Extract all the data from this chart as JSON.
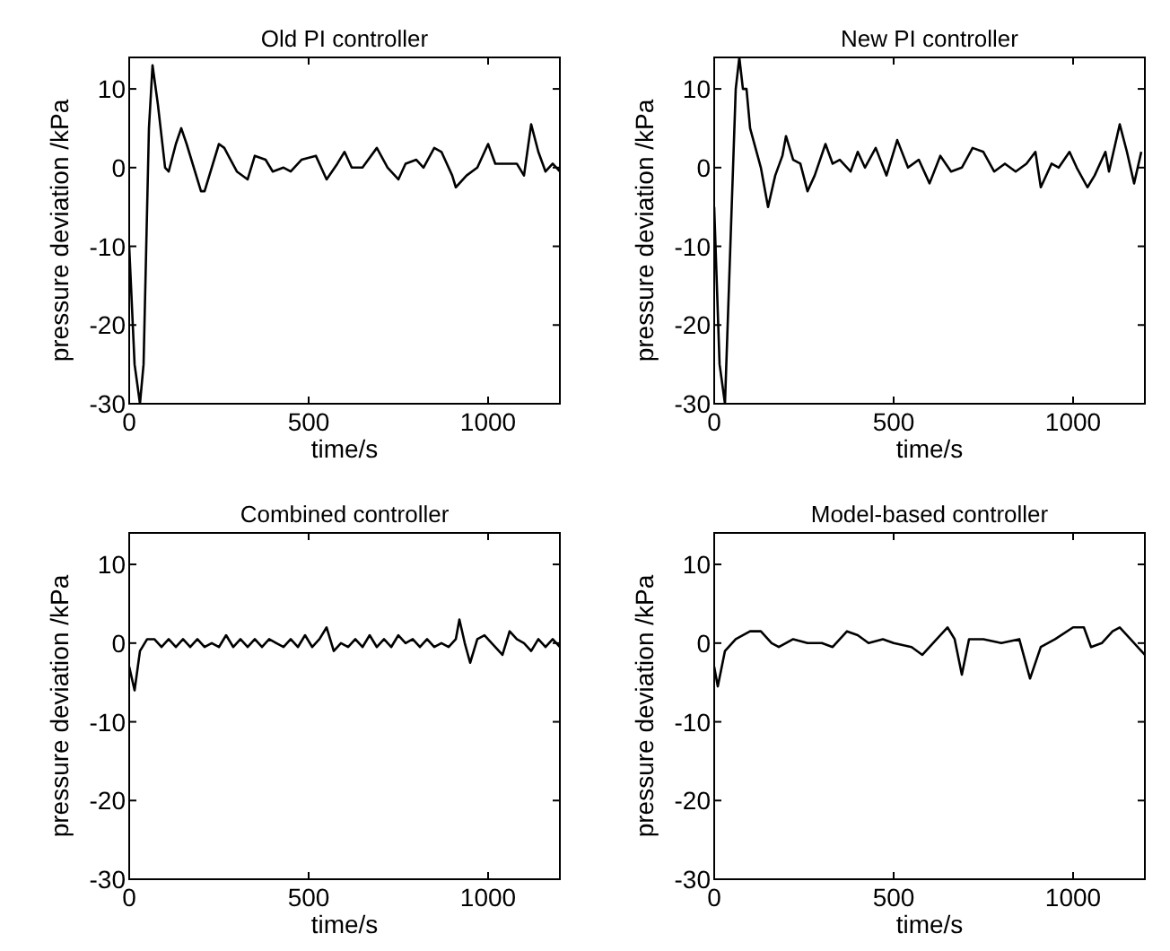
{
  "chart_data": [
    {
      "type": "line",
      "title": "Old PI controller",
      "xlabel": "time/s",
      "ylabel": "pressure deviation /kPa",
      "color": "#000000",
      "xlim": [
        0,
        1200
      ],
      "ylim": [
        -30,
        14
      ],
      "xticks": [
        0,
        500,
        1000
      ],
      "yticks": [
        -30,
        -20,
        -10,
        0,
        10
      ],
      "x": [
        0,
        15,
        30,
        40,
        55,
        65,
        80,
        100,
        110,
        130,
        145,
        160,
        200,
        210,
        250,
        265,
        300,
        330,
        350,
        380,
        400,
        430,
        450,
        480,
        520,
        550,
        580,
        600,
        620,
        650,
        690,
        720,
        750,
        770,
        800,
        820,
        850,
        870,
        900,
        910,
        940,
        970,
        1000,
        1020,
        1050,
        1080,
        1100,
        1120,
        1140,
        1160,
        1180,
        1200
      ],
      "values": [
        -10,
        -25,
        -30,
        -25,
        5,
        13,
        8,
        0,
        -0.5,
        3,
        5,
        3,
        -3,
        -3,
        3,
        2.5,
        -0.5,
        -1.5,
        1.5,
        1,
        -0.5,
        0,
        -0.5,
        1,
        1.5,
        -1.5,
        0.5,
        2,
        0,
        0,
        2.5,
        0,
        -1.5,
        0.5,
        1,
        0,
        2.5,
        2,
        -1,
        -2.5,
        -1,
        0,
        3,
        0.5,
        0.5,
        0.5,
        -1,
        5.5,
        2,
        -0.5,
        0.5,
        -0.5
      ]
    },
    {
      "type": "line",
      "title": "New PI controller",
      "xlabel": "time/s",
      "ylabel": "pressure deviation /kPa",
      "color": "#000000",
      "xlim": [
        0,
        1200
      ],
      "ylim": [
        -30,
        14
      ],
      "xticks": [
        0,
        500,
        1000
      ],
      "yticks": [
        -30,
        -20,
        -10,
        0,
        10
      ],
      "x": [
        0,
        15,
        30,
        45,
        60,
        70,
        80,
        90,
        100,
        130,
        150,
        170,
        190,
        200,
        220,
        240,
        260,
        280,
        310,
        330,
        350,
        380,
        400,
        420,
        450,
        480,
        510,
        540,
        570,
        600,
        630,
        660,
        690,
        720,
        750,
        780,
        810,
        840,
        870,
        895,
        910,
        940,
        960,
        990,
        1010,
        1040,
        1060,
        1090,
        1100,
        1130,
        1150,
        1170,
        1190
      ],
      "values": [
        -5,
        -25,
        -30,
        -10,
        10,
        14,
        10,
        10,
        5,
        0,
        -5,
        -1,
        1.5,
        4,
        1,
        0.5,
        -3,
        -1,
        3,
        0.5,
        1,
        -0.5,
        2,
        0,
        2.5,
        -1,
        3.5,
        0,
        1,
        -2,
        1.5,
        -0.5,
        0,
        2.5,
        2,
        -0.5,
        0.5,
        -0.5,
        0.5,
        2,
        -2.5,
        0.5,
        0,
        2,
        0,
        -2.5,
        -1,
        2,
        -0.5,
        5.5,
        2,
        -2,
        2
      ]
    },
    {
      "type": "line",
      "title": "Combined controller",
      "xlabel": "time/s",
      "ylabel": "pressure deviation /kPa",
      "color": "#000000",
      "xlim": [
        0,
        1200
      ],
      "ylim": [
        -30,
        14
      ],
      "xticks": [
        0,
        500,
        1000
      ],
      "yticks": [
        -30,
        -20,
        -10,
        0,
        10
      ],
      "x": [
        0,
        15,
        30,
        50,
        70,
        90,
        110,
        130,
        150,
        170,
        190,
        210,
        230,
        250,
        270,
        290,
        310,
        330,
        350,
        370,
        390,
        410,
        430,
        450,
        470,
        490,
        510,
        530,
        550,
        570,
        590,
        610,
        630,
        650,
        670,
        690,
        710,
        730,
        750,
        770,
        790,
        810,
        830,
        850,
        870,
        890,
        910,
        920,
        935,
        950,
        970,
        990,
        1010,
        1040,
        1060,
        1080,
        1100,
        1120,
        1140,
        1160,
        1180,
        1200
      ],
      "values": [
        -3,
        -6,
        -1,
        0.5,
        0.5,
        -0.5,
        0.5,
        -0.5,
        0.5,
        -0.5,
        0.5,
        -0.5,
        0,
        -0.5,
        1,
        -0.5,
        0.5,
        -0.5,
        0.5,
        -0.5,
        0.5,
        0,
        -0.5,
        0.5,
        -0.5,
        1,
        -0.5,
        0.5,
        2,
        -1,
        0,
        -0.5,
        0.5,
        -0.5,
        1,
        -0.5,
        0.5,
        -0.5,
        1,
        0,
        0.5,
        -0.5,
        0.5,
        -0.5,
        0,
        -0.5,
        0.5,
        3,
        0,
        -2.5,
        0.5,
        1,
        0,
        -1.5,
        1.5,
        0.5,
        0,
        -1,
        0.5,
        -0.5,
        0.5,
        -0.5
      ]
    },
    {
      "type": "line",
      "title": "Model-based controller",
      "xlabel": "time/s",
      "ylabel": "pressure deviation /kPa",
      "color": "#000000",
      "xlim": [
        0,
        1200
      ],
      "ylim": [
        -30,
        14
      ],
      "xticks": [
        0,
        500,
        1000
      ],
      "yticks": [
        -30,
        -20,
        -10,
        0,
        10
      ],
      "x": [
        0,
        10,
        30,
        60,
        100,
        130,
        160,
        180,
        220,
        260,
        300,
        330,
        370,
        400,
        430,
        470,
        500,
        550,
        580,
        620,
        650,
        670,
        690,
        710,
        750,
        800,
        850,
        880,
        910,
        950,
        1000,
        1030,
        1050,
        1080,
        1110,
        1130,
        1160,
        1200
      ],
      "values": [
        -3,
        -5.5,
        -1,
        0.5,
        1.5,
        1.5,
        0,
        -0.5,
        0.5,
        0,
        0,
        -0.5,
        1.5,
        1,
        0,
        0.5,
        0,
        -0.5,
        -1.5,
        0.5,
        2,
        0.5,
        -4,
        0.5,
        0.5,
        0,
        0.5,
        -4.5,
        -0.5,
        0.5,
        2,
        2,
        -0.5,
        0,
        1.5,
        2,
        0.5,
        -1.5
      ]
    }
  ]
}
